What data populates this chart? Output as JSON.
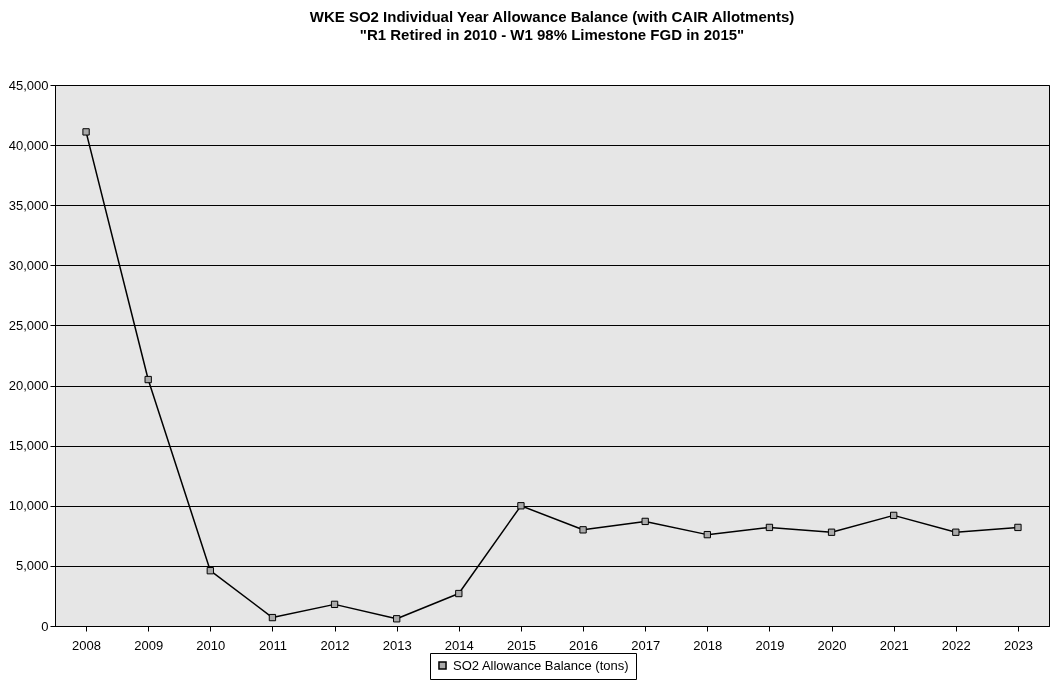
{
  "chart_data": {
    "type": "line",
    "title": "WKE SO2 Individual Year Allowance Balance (with CAIR Allotments)",
    "subtitle": "\"R1 Retired in 2010 - W1 98% Limestone FGD in 2015\"",
    "categories": [
      "2008",
      "2009",
      "2010",
      "2011",
      "2012",
      "2013",
      "2014",
      "2015",
      "2016",
      "2017",
      "2018",
      "2019",
      "2020",
      "2021",
      "2022",
      "2023"
    ],
    "series": [
      {
        "name": "SO2 Allowance Balance (tons)",
        "color": "#000000",
        "values": [
          41100,
          20500,
          4600,
          700,
          1800,
          600,
          2700,
          10000,
          8000,
          8700,
          7600,
          8200,
          7800,
          9200,
          7800,
          8200
        ]
      }
    ],
    "ylim": [
      0,
      45000
    ],
    "yticks": [
      0,
      {
        "value": 5000,
        "label": "5,000"
      },
      {
        "value": 10000,
        "label": "10,000"
      },
      {
        "value": 15000,
        "label": "15,000"
      },
      {
        "value": 20000,
        "label": "20,000"
      },
      {
        "value": 25000,
        "label": "25,000"
      },
      {
        "value": 30000,
        "label": "30,000"
      },
      {
        "value": 35000,
        "label": "35,000"
      },
      {
        "value": 40000,
        "label": "40,000"
      },
      {
        "value": 45000,
        "label": "45,000"
      }
    ],
    "grid": "y",
    "legend": "bottom",
    "marker": "square",
    "line_style": "solid"
  }
}
